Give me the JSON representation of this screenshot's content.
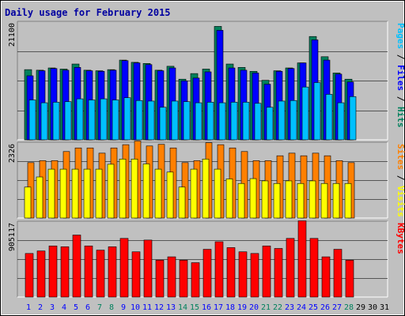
{
  "title": "Daily usage for February 2015",
  "colors": {
    "background": "#c0c0c0",
    "plot_bg": "#c0c0c0",
    "hits": "#00805c",
    "files": "#0000ff",
    "pages": "#00c0ff",
    "visits": "#ffff00",
    "sites": "#ff8000",
    "kbytes": "#ff0000",
    "weekend_label": "#00805c",
    "weekday_label": "#0000ff",
    "nodata_label": "#000000"
  },
  "chart_data": [
    {
      "type": "bar",
      "panel": "hits-files-pages",
      "ymax_label": "21100",
      "ylim": [
        0,
        21100
      ],
      "right_label": [
        {
          "text": "Pages",
          "color": "#00c0ff"
        },
        {
          "text": " / ",
          "color": "#000000"
        },
        {
          "text": "Files",
          "color": "#0000ff"
        },
        {
          "text": " / ",
          "color": "#000000"
        },
        {
          "text": "Hits",
          "color": "#00805c"
        }
      ],
      "categories": [
        "1",
        "2",
        "3",
        "4",
        "5",
        "6",
        "7",
        "8",
        "9",
        "10",
        "11",
        "12",
        "13",
        "14",
        "15",
        "16",
        "17",
        "18",
        "19",
        "20",
        "21",
        "22",
        "23",
        "24",
        "25",
        "26",
        "27",
        "28"
      ],
      "series": [
        {
          "name": "Hits",
          "color": "#00805c",
          "values": [
            12500,
            12400,
            12800,
            12600,
            13500,
            12400,
            12300,
            12500,
            14200,
            13800,
            13600,
            12400,
            13100,
            10800,
            11800,
            12600,
            20200,
            13500,
            12900,
            12200,
            10600,
            12300,
            12800,
            13700,
            18400,
            14800,
            11900,
            10800
          ]
        },
        {
          "name": "Files",
          "color": "#0000ff",
          "values": [
            11400,
            12300,
            12700,
            12400,
            12900,
            12300,
            12200,
            12400,
            14100,
            13700,
            13400,
            12300,
            12800,
            10500,
            11000,
            12100,
            19500,
            12800,
            12400,
            11900,
            9900,
            12200,
            12700,
            13700,
            17800,
            14200,
            11700,
            10300
          ]
        },
        {
          "name": "Pages",
          "color": "#00c0ff",
          "values": [
            7100,
            6600,
            6700,
            6800,
            7300,
            7100,
            7300,
            7100,
            7500,
            7000,
            6900,
            5800,
            6900,
            6800,
            6600,
            6700,
            6600,
            6700,
            6700,
            6500,
            5800,
            6900,
            7000,
            9400,
            10200,
            8100,
            6600,
            7700
          ]
        }
      ]
    },
    {
      "type": "bar",
      "panel": "sites-visits",
      "ymax_label": "2326",
      "ylim": [
        0,
        2326
      ],
      "right_label": [
        {
          "text": "Sites",
          "color": "#ff8000"
        },
        {
          "text": " / ",
          "color": "#000000"
        },
        {
          "text": "Visits",
          "color": "#ffff00"
        }
      ],
      "categories": [
        "1",
        "2",
        "3",
        "4",
        "5",
        "6",
        "7",
        "8",
        "9",
        "10",
        "11",
        "12",
        "13",
        "14",
        "15",
        "16",
        "17",
        "18",
        "19",
        "20",
        "21",
        "22",
        "23",
        "24",
        "25",
        "26",
        "27",
        "28"
      ],
      "series": [
        {
          "name": "Sites",
          "color": "#ff8000",
          "values": [
            1700,
            1760,
            1760,
            2040,
            2150,
            2150,
            1990,
            2150,
            2250,
            2360,
            2210,
            2260,
            2150,
            1700,
            1760,
            2310,
            2250,
            2150,
            2040,
            1760,
            1760,
            1910,
            1990,
            1910,
            1990,
            1910,
            1760,
            1700
          ]
        },
        {
          "name": "Visits",
          "color": "#ffff00",
          "values": [
            950,
            1260,
            1500,
            1500,
            1500,
            1500,
            1500,
            1650,
            1810,
            1810,
            1660,
            1500,
            1410,
            950,
            1500,
            1810,
            1500,
            1200,
            1060,
            1210,
            1140,
            1060,
            1140,
            1060,
            1140,
            1060,
            1060,
            1060
          ]
        }
      ]
    },
    {
      "type": "bar",
      "panel": "kbytes",
      "ymax_label": "905117",
      "ylim": [
        0,
        905117
      ],
      "right_label": [
        {
          "text": "KBytes",
          "color": "#ff0000"
        }
      ],
      "categories": [
        "1",
        "2",
        "3",
        "4",
        "5",
        "6",
        "7",
        "8",
        "9",
        "10",
        "11",
        "12",
        "13",
        "14",
        "15",
        "16",
        "17",
        "18",
        "19",
        "20",
        "21",
        "22",
        "23",
        "24",
        "25",
        "26",
        "27",
        "28"
      ],
      "series": [
        {
          "name": "KBytes",
          "color": "#ff0000",
          "values": [
            520000,
            550000,
            610000,
            600000,
            740000,
            610000,
            560000,
            600000,
            700000,
            540000,
            680000,
            440000,
            480000,
            440000,
            410000,
            570000,
            660000,
            590000,
            540000,
            520000,
            610000,
            580000,
            700000,
            910000,
            700000,
            480000,
            570000,
            440000
          ]
        }
      ]
    }
  ],
  "days": [
    {
      "label": "1",
      "weekend": false,
      "has_data": true
    },
    {
      "label": "2",
      "weekend": false,
      "has_data": true
    },
    {
      "label": "3",
      "weekend": false,
      "has_data": true
    },
    {
      "label": "4",
      "weekend": false,
      "has_data": true
    },
    {
      "label": "5",
      "weekend": false,
      "has_data": true
    },
    {
      "label": "6",
      "weekend": false,
      "has_data": true
    },
    {
      "label": "7",
      "weekend": true,
      "has_data": true
    },
    {
      "label": "8",
      "weekend": true,
      "has_data": true
    },
    {
      "label": "9",
      "weekend": false,
      "has_data": true
    },
    {
      "label": "10",
      "weekend": false,
      "has_data": true
    },
    {
      "label": "11",
      "weekend": false,
      "has_data": true
    },
    {
      "label": "12",
      "weekend": false,
      "has_data": true
    },
    {
      "label": "13",
      "weekend": false,
      "has_data": true
    },
    {
      "label": "14",
      "weekend": true,
      "has_data": true
    },
    {
      "label": "15",
      "weekend": true,
      "has_data": true
    },
    {
      "label": "16",
      "weekend": false,
      "has_data": true
    },
    {
      "label": "17",
      "weekend": false,
      "has_data": true
    },
    {
      "label": "18",
      "weekend": false,
      "has_data": true
    },
    {
      "label": "19",
      "weekend": false,
      "has_data": true
    },
    {
      "label": "20",
      "weekend": false,
      "has_data": true
    },
    {
      "label": "21",
      "weekend": true,
      "has_data": true
    },
    {
      "label": "22",
      "weekend": true,
      "has_data": true
    },
    {
      "label": "23",
      "weekend": false,
      "has_data": true
    },
    {
      "label": "24",
      "weekend": false,
      "has_data": true
    },
    {
      "label": "25",
      "weekend": false,
      "has_data": true
    },
    {
      "label": "26",
      "weekend": false,
      "has_data": true
    },
    {
      "label": "27",
      "weekend": false,
      "has_data": true
    },
    {
      "label": "28",
      "weekend": true,
      "has_data": true
    },
    {
      "label": "29",
      "weekend": true,
      "has_data": false
    },
    {
      "label": "30",
      "weekend": false,
      "has_data": false
    },
    {
      "label": "31",
      "weekend": false,
      "has_data": false
    }
  ]
}
